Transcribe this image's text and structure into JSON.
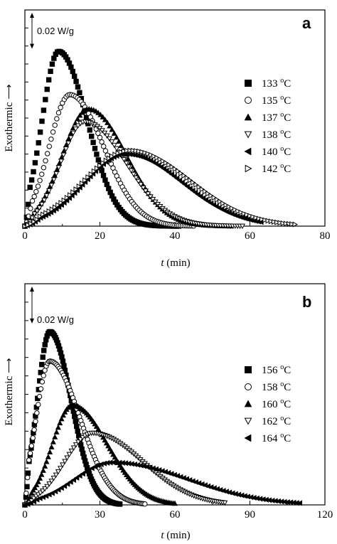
{
  "chart_data": [
    {
      "type": "line",
      "panel_label": "a",
      "ylabel": "Exothermic",
      "xlabel_var": "t",
      "xlabel_unit": "(min)",
      "xlim": [
        0,
        80
      ],
      "xticks": [
        0,
        20,
        40,
        60,
        80
      ],
      "scale_bar_label": "0.02 W/g",
      "scale_bar_value": 0.02,
      "ylim": [
        0,
        0.12
      ],
      "grid": false,
      "legend_position": "right",
      "series": [
        {
          "name": "133",
          "unit": "oC",
          "marker": "square-filled",
          "peak_x": 9,
          "peak_y": 0.097,
          "end_x": 41,
          "sigma_left": 4.4,
          "sigma_right": 7.6
        },
        {
          "name": "135",
          "unit": "oC",
          "marker": "circle-open",
          "peak_x": 12,
          "peak_y": 0.073,
          "end_x": 45,
          "sigma_left": 5.5,
          "sigma_right": 9.0
        },
        {
          "name": "137",
          "unit": "oC",
          "marker": "triangle-up-filled",
          "peak_x": 17,
          "peak_y": 0.065,
          "end_x": 55,
          "sigma_left": 7.0,
          "sigma_right": 10.0
        },
        {
          "name": "138",
          "unit": "oC",
          "marker": "triangle-down-open",
          "peak_x": 16,
          "peak_y": 0.058,
          "end_x": 58,
          "sigma_left": 6.5,
          "sigma_right": 11.0
        },
        {
          "name": "140",
          "unit": "oC",
          "marker": "triangle-left-filled",
          "peak_x": 27,
          "peak_y": 0.04,
          "end_x": 63,
          "sigma_left": 11.0,
          "sigma_right": 15.0
        },
        {
          "name": "142",
          "unit": "oC",
          "marker": "triangle-right-open",
          "peak_x": 28,
          "peak_y": 0.042,
          "end_x": 72,
          "sigma_left": 12.0,
          "sigma_right": 16.0
        }
      ]
    },
    {
      "type": "line",
      "panel_label": "b",
      "ylabel": "Exothermic",
      "xlabel_var": "t",
      "xlabel_unit": "(min)",
      "xlim": [
        0,
        120
      ],
      "xticks": [
        0,
        30,
        60,
        90,
        120
      ],
      "scale_bar_label": "0.02 W/g",
      "scale_bar_value": 0.02,
      "ylim": [
        0,
        0.12
      ],
      "grid": false,
      "legend_position": "right",
      "series": [
        {
          "name": "156",
          "unit": "oC",
          "marker": "square-filled",
          "peak_x": 10,
          "peak_y": 0.094,
          "end_x": 38,
          "sigma_left": 5.0,
          "sigma_right": 8.5
        },
        {
          "name": "158",
          "unit": "oC",
          "marker": "circle-open",
          "peak_x": 10,
          "peak_y": 0.078,
          "end_x": 48,
          "sigma_left": 5.5,
          "sigma_right": 12.0
        },
        {
          "name": "160",
          "unit": "oC",
          "marker": "triangle-up-filled",
          "peak_x": 19,
          "peak_y": 0.054,
          "end_x": 60,
          "sigma_left": 8.0,
          "sigma_right": 14.0
        },
        {
          "name": "162",
          "unit": "oC",
          "marker": "triangle-down-open",
          "peak_x": 27,
          "peak_y": 0.039,
          "end_x": 80,
          "sigma_left": 11.0,
          "sigma_right": 20.0
        },
        {
          "name": "164",
          "unit": "oC",
          "marker": "triangle-left-filled",
          "peak_x": 35,
          "peak_y": 0.023,
          "end_x": 110,
          "sigma_left": 15.0,
          "sigma_right": 30.0
        }
      ]
    }
  ]
}
